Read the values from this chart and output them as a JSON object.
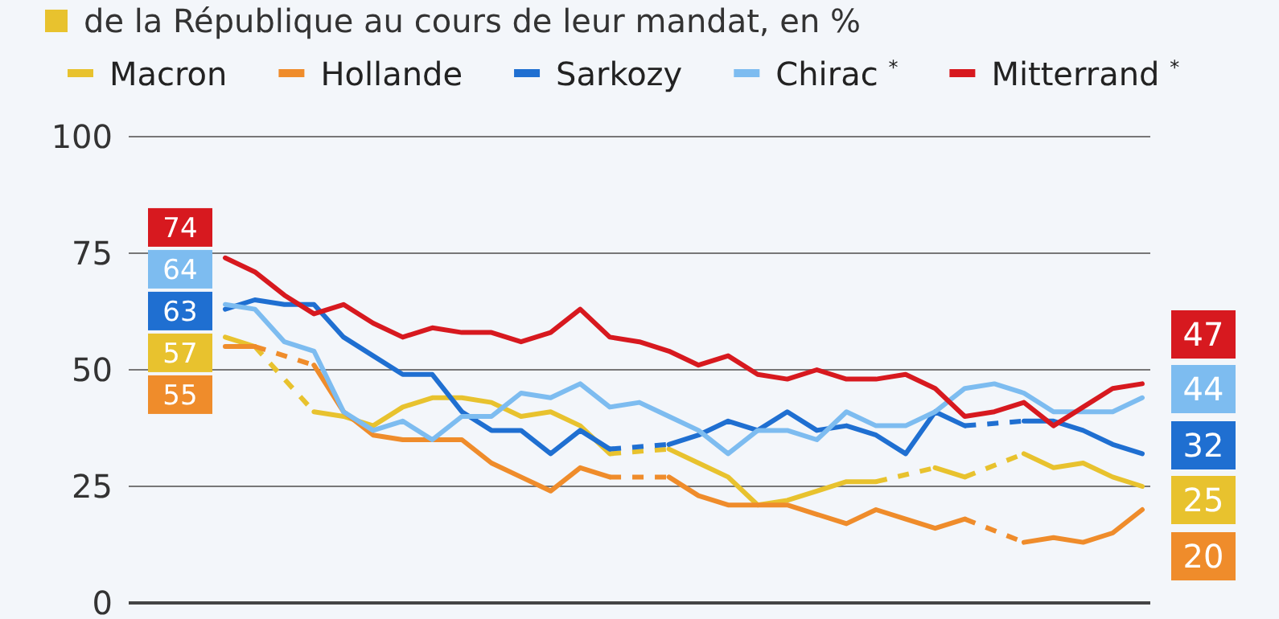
{
  "chart_data": {
    "type": "line",
    "title": "de la République au cours de leur mandat, en %",
    "categories": [
      null,
      null,
      null,
      null,
      null,
      null,
      null,
      null,
      null,
      null,
      null,
      null,
      null,
      null,
      null,
      null,
      null,
      null,
      null,
      null,
      null,
      null,
      null,
      null,
      null,
      null,
      null,
      null,
      null,
      null,
      null,
      null
    ],
    "series": [
      {
        "name": "Macron",
        "color": "#e8c22e",
        "values": [
          57,
          55,
          null,
          41,
          40,
          38,
          42,
          44,
          44,
          43,
          40,
          41,
          38,
          32,
          null,
          33,
          30,
          27,
          21,
          22,
          24,
          26,
          26,
          null,
          29,
          27,
          null,
          32,
          29,
          30,
          27,
          25
        ],
        "value_labels": [
          "57",
          null,
          null,
          null,
          null,
          null,
          null,
          null,
          null,
          null,
          null,
          null,
          null,
          null,
          null,
          null,
          null,
          null,
          null,
          null,
          null,
          null,
          null,
          null,
          null,
          null,
          null,
          null,
          null,
          null,
          null,
          "25"
        ]
      },
      {
        "name": "Hollande",
        "color": "#ef8c2b",
        "values": [
          55,
          55,
          null,
          51,
          41,
          36,
          35,
          35,
          35,
          30,
          27,
          24,
          29,
          27,
          null,
          27,
          23,
          21,
          21,
          21,
          19,
          17,
          20,
          18,
          16,
          18,
          null,
          13,
          14,
          13,
          15,
          20
        ],
        "value_labels": [
          "55",
          null,
          null,
          null,
          null,
          null,
          null,
          null,
          null,
          null,
          null,
          null,
          null,
          null,
          null,
          null,
          null,
          null,
          null,
          null,
          null,
          null,
          null,
          null,
          null,
          null,
          null,
          null,
          null,
          null,
          null,
          "20"
        ]
      },
      {
        "name": "Sarkozy",
        "color": "#1f6fd1",
        "values": [
          63,
          65,
          64,
          64,
          57,
          53,
          49,
          49,
          41,
          37,
          37,
          32,
          37,
          33,
          null,
          34,
          36,
          39,
          37,
          41,
          37,
          38,
          36,
          32,
          41,
          38,
          null,
          39,
          39,
          37,
          34,
          32
        ],
        "value_labels": [
          "63",
          null,
          null,
          null,
          null,
          null,
          null,
          null,
          null,
          null,
          null,
          null,
          null,
          null,
          null,
          null,
          null,
          null,
          null,
          null,
          null,
          null,
          null,
          null,
          null,
          null,
          null,
          null,
          null,
          null,
          null,
          "32"
        ]
      },
      {
        "name": "Chirac $^{*}$",
        "color": "#7dbcf0",
        "values": [
          64,
          63,
          56,
          54,
          41,
          37,
          39,
          35,
          40,
          40,
          45,
          44,
          47,
          42,
          43,
          40,
          37,
          32,
          37,
          37,
          35,
          41,
          38,
          38,
          41,
          46,
          47,
          45,
          41,
          41,
          41,
          44
        ],
        "value_labels": [
          "64",
          null,
          null,
          null,
          null,
          null,
          null,
          null,
          null,
          null,
          null,
          null,
          null,
          null,
          null,
          null,
          null,
          null,
          null,
          null,
          null,
          null,
          null,
          null,
          null,
          null,
          null,
          null,
          null,
          null,
          null,
          "44"
        ]
      },
      {
        "name": "Mitterrand $^{*}$",
        "color": "#d7191f",
        "values": [
          74,
          71,
          66,
          62,
          64,
          60,
          57,
          59,
          58,
          58,
          56,
          58,
          63,
          57,
          56,
          54,
          51,
          53,
          49,
          48,
          50,
          48,
          48,
          49,
          46,
          40,
          41,
          43,
          38,
          42,
          46,
          47
        ],
        "value_labels": [
          "74",
          null,
          null,
          null,
          null,
          null,
          null,
          null,
          null,
          null,
          null,
          null,
          null,
          null,
          null,
          null,
          null,
          null,
          null,
          null,
          null,
          null,
          null,
          null,
          null,
          null,
          null,
          null,
          null,
          null,
          null,
          "47"
        ]
      }
    ],
    "ylim": [
      0,
      100
    ],
    "yticks": [
      0,
      25,
      50,
      75,
      100
    ],
    "grid": "y",
    "legend": "top",
    "line_style": "solid",
    "marker": "none"
  }
}
